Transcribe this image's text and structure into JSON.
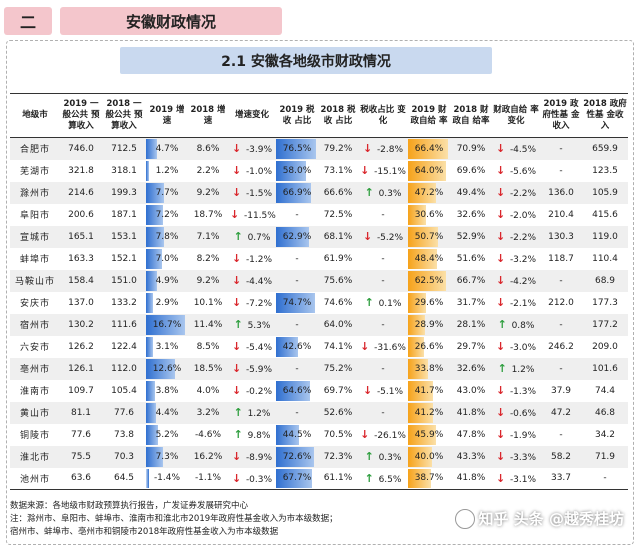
{
  "section": {
    "number": "二",
    "title": "安徽财政情况"
  },
  "subtitle": "2.1 安徽各地级市财政情况",
  "table": {
    "headers": [
      "地级市",
      "2019 一般公共 预算收入",
      "2018 一般公共 预算收入",
      "2019 增速",
      "2018 增速",
      "增速变化",
      "2019 税收 占比",
      "2018 税收 占比",
      "税收占比 变化",
      "2019 财政自给 率",
      "2018 财政自 给率",
      "财政自给 率变化",
      "2019 政府性基 金收入",
      "2018 政府性基 金收入"
    ],
    "rows": [
      {
        "city": "合肥市",
        "rev2019": "746.0",
        "rev2018": "712.5",
        "g2019": "4.7%",
        "g2019v": 4.7,
        "g2018": "8.6%",
        "gc_dir": "down",
        "gc": "-3.9%",
        "tax2019": "76.5%",
        "tax2019v": 76.5,
        "tax2018": "79.2%",
        "tc_dir": "down",
        "tc": "-2.8%",
        "sf2019": "66.4%",
        "sf2019v": 66.4,
        "sf2018": "70.9%",
        "sc_dir": "down",
        "sc": "-4.5%",
        "fund2019": "-",
        "fund2018": "659.9"
      },
      {
        "city": "芜湖市",
        "rev2019": "321.8",
        "rev2018": "318.1",
        "g2019": "1.2%",
        "g2019v": 1.2,
        "g2018": "2.2%",
        "gc_dir": "down",
        "gc": "-1.0%",
        "tax2019": "58.0%",
        "tax2019v": 58.0,
        "tax2018": "73.1%",
        "tc_dir": "down",
        "tc": "-15.1%",
        "sf2019": "64.0%",
        "sf2019v": 64.0,
        "sf2018": "69.6%",
        "sc_dir": "down",
        "sc": "-5.6%",
        "fund2019": "-",
        "fund2018": "123.5"
      },
      {
        "city": "滁州市",
        "rev2019": "214.6",
        "rev2018": "199.3",
        "g2019": "7.7%",
        "g2019v": 7.7,
        "g2018": "9.2%",
        "gc_dir": "down",
        "gc": "-1.5%",
        "tax2019": "66.9%",
        "tax2019v": 66.9,
        "tax2018": "66.6%",
        "tc_dir": "up",
        "tc": "0.3%",
        "sf2019": "47.2%",
        "sf2019v": 47.2,
        "sf2018": "49.4%",
        "sc_dir": "down",
        "sc": "-2.2%",
        "fund2019": "136.0",
        "fund2018": "105.9"
      },
      {
        "city": "阜阳市",
        "rev2019": "200.6",
        "rev2018": "187.1",
        "g2019": "7.2%",
        "g2019v": 7.2,
        "g2018": "18.7%",
        "gc_dir": "down",
        "gc": "-11.5%",
        "tax2019": "-",
        "tax2019v": 0,
        "tax2018": "72.5%",
        "tc_dir": "",
        "tc": "-",
        "sf2019": "30.6%",
        "sf2019v": 30.6,
        "sf2018": "32.6%",
        "sc_dir": "down",
        "sc": "-2.0%",
        "fund2019": "210.4",
        "fund2018": "415.6"
      },
      {
        "city": "宣城市",
        "rev2019": "165.1",
        "rev2018": "153.1",
        "g2019": "7.8%",
        "g2019v": 7.8,
        "g2018": "7.1%",
        "gc_dir": "up",
        "gc": "0.7%",
        "tax2019": "62.9%",
        "tax2019v": 62.9,
        "tax2018": "68.1%",
        "tc_dir": "down",
        "tc": "-5.2%",
        "sf2019": "50.7%",
        "sf2019v": 50.7,
        "sf2018": "52.9%",
        "sc_dir": "down",
        "sc": "-2.2%",
        "fund2019": "130.3",
        "fund2018": "119.0"
      },
      {
        "city": "蚌埠市",
        "rev2019": "163.3",
        "rev2018": "152.1",
        "g2019": "7.0%",
        "g2019v": 7.0,
        "g2018": "8.2%",
        "gc_dir": "down",
        "gc": "-1.2%",
        "tax2019": "-",
        "tax2019v": 0,
        "tax2018": "61.9%",
        "tc_dir": "",
        "tc": "-",
        "sf2019": "48.4%",
        "sf2019v": 48.4,
        "sf2018": "51.6%",
        "sc_dir": "down",
        "sc": "-3.2%",
        "fund2019": "118.7",
        "fund2018": "110.4"
      },
      {
        "city": "马鞍山市",
        "rev2019": "158.4",
        "rev2018": "151.0",
        "g2019": "4.9%",
        "g2019v": 4.9,
        "g2018": "9.2%",
        "gc_dir": "down",
        "gc": "-4.4%",
        "tax2019": "-",
        "tax2019v": 0,
        "tax2018": "75.6%",
        "tc_dir": "",
        "tc": "-",
        "sf2019": "62.5%",
        "sf2019v": 62.5,
        "sf2018": "66.7%",
        "sc_dir": "down",
        "sc": "-4.2%",
        "fund2019": "-",
        "fund2018": "68.9"
      },
      {
        "city": "安庆市",
        "rev2019": "137.0",
        "rev2018": "133.2",
        "g2019": "2.9%",
        "g2019v": 2.9,
        "g2018": "10.1%",
        "gc_dir": "down",
        "gc": "-7.2%",
        "tax2019": "74.7%",
        "tax2019v": 74.7,
        "tax2018": "74.6%",
        "tc_dir": "up",
        "tc": "0.1%",
        "sf2019": "29.6%",
        "sf2019v": 29.6,
        "sf2018": "31.7%",
        "sc_dir": "down",
        "sc": "-2.1%",
        "fund2019": "212.0",
        "fund2018": "177.3"
      },
      {
        "city": "宿州市",
        "rev2019": "130.2",
        "rev2018": "111.6",
        "g2019": "16.7%",
        "g2019v": 16.7,
        "g2018": "11.4%",
        "gc_dir": "up",
        "gc": "5.3%",
        "tax2019": "-",
        "tax2019v": 0,
        "tax2018": "64.0%",
        "tc_dir": "",
        "tc": "-",
        "sf2019": "28.9%",
        "sf2019v": 28.9,
        "sf2018": "28.1%",
        "sc_dir": "up",
        "sc": "0.8%",
        "fund2019": "-",
        "fund2018": "177.2"
      },
      {
        "city": "六安市",
        "rev2019": "126.2",
        "rev2018": "122.4",
        "g2019": "3.1%",
        "g2019v": 3.1,
        "g2018": "8.5%",
        "gc_dir": "down",
        "gc": "-5.4%",
        "tax2019": "42.6%",
        "tax2019v": 42.6,
        "tax2018": "74.1%",
        "tc_dir": "down",
        "tc": "-31.6%",
        "sf2019": "26.6%",
        "sf2019v": 26.6,
        "sf2018": "29.7%",
        "sc_dir": "down",
        "sc": "-3.0%",
        "fund2019": "246.2",
        "fund2018": "209.0"
      },
      {
        "city": "亳州市",
        "rev2019": "126.1",
        "rev2018": "112.0",
        "g2019": "12.6%",
        "g2019v": 12.6,
        "g2018": "18.5%",
        "gc_dir": "down",
        "gc": "-5.9%",
        "tax2019": "-",
        "tax2019v": 0,
        "tax2018": "75.2%",
        "tc_dir": "",
        "tc": "-",
        "sf2019": "33.8%",
        "sf2019v": 33.8,
        "sf2018": "32.6%",
        "sc_dir": "up",
        "sc": "1.2%",
        "fund2019": "-",
        "fund2018": "101.6"
      },
      {
        "city": "淮南市",
        "rev2019": "109.7",
        "rev2018": "105.4",
        "g2019": "3.8%",
        "g2019v": 3.8,
        "g2018": "4.0%",
        "gc_dir": "down",
        "gc": "-0.2%",
        "tax2019": "64.6%",
        "tax2019v": 64.6,
        "tax2018": "69.7%",
        "tc_dir": "down",
        "tc": "-5.1%",
        "sf2019": "41.7%",
        "sf2019v": 41.7,
        "sf2018": "43.0%",
        "sc_dir": "down",
        "sc": "-1.3%",
        "fund2019": "37.9",
        "fund2018": "74.4"
      },
      {
        "city": "黄山市",
        "rev2019": "81.1",
        "rev2018": "77.6",
        "g2019": "4.4%",
        "g2019v": 4.4,
        "g2018": "3.2%",
        "gc_dir": "up",
        "gc": "1.2%",
        "tax2019": "-",
        "tax2019v": 0,
        "tax2018": "52.6%",
        "tc_dir": "",
        "tc": "-",
        "sf2019": "41.2%",
        "sf2019v": 41.2,
        "sf2018": "41.8%",
        "sc_dir": "down",
        "sc": "-0.6%",
        "fund2019": "47.2",
        "fund2018": "46.8"
      },
      {
        "city": "铜陵市",
        "rev2019": "77.6",
        "rev2018": "73.8",
        "g2019": "5.2%",
        "g2019v": 5.2,
        "g2018": "-4.6%",
        "gc_dir": "up",
        "gc": "9.8%",
        "tax2019": "44.5%",
        "tax2019v": 44.5,
        "tax2018": "70.5%",
        "tc_dir": "down",
        "tc": "-26.1%",
        "sf2019": "45.9%",
        "sf2019v": 45.9,
        "sf2018": "47.8%",
        "sc_dir": "down",
        "sc": "-1.9%",
        "fund2019": "-",
        "fund2018": "34.2"
      },
      {
        "city": "淮北市",
        "rev2019": "75.5",
        "rev2018": "70.3",
        "g2019": "7.3%",
        "g2019v": 7.3,
        "g2018": "16.2%",
        "gc_dir": "down",
        "gc": "-8.9%",
        "tax2019": "72.6%",
        "tax2019v": 72.6,
        "tax2018": "72.3%",
        "tc_dir": "up",
        "tc": "0.3%",
        "sf2019": "40.0%",
        "sf2019v": 40.0,
        "sf2018": "43.3%",
        "sc_dir": "down",
        "sc": "-3.3%",
        "fund2019": "58.2",
        "fund2018": "71.9"
      },
      {
        "city": "池州市",
        "rev2019": "63.6",
        "rev2018": "64.5",
        "g2019": "-1.4%",
        "g2019v": -1.4,
        "g2018": "-1.1%",
        "gc_dir": "down",
        "gc": "-0.3%",
        "tax2019": "67.7%",
        "tax2019v": 67.7,
        "tax2018": "61.1%",
        "tc_dir": "up",
        "tc": "6.5%",
        "sf2019": "38.7%",
        "sf2019v": 38.7,
        "sf2018": "41.8%",
        "sc_dir": "down",
        "sc": "-3.1%",
        "fund2019": "33.7",
        "fund2018": "-"
      }
    ]
  },
  "notes": [
    "数据来源：各地级市财政预算执行报告，广发证券发展研究中心",
    "注：滁州市、阜阳市、蚌埠市、淮南市和淮北市2019年政府性基金收入为市本级数据；",
    "宿州市、蚌埠市、亳州市和铜陵市2018年政府性基金收入为市本级数据"
  ],
  "watermark": "知乎 头条 @越秀桂坊",
  "colors": {
    "growth_bar": "#2f6fd0",
    "tax_bar": "#2f6fd0",
    "selfsuff_bar": "#f6a21a",
    "up_arrow": "#2e9e3e",
    "down_arrow": "#d9262c",
    "header_bg": "#f4c6cc",
    "subtitle_bg": "#c9d9ef"
  }
}
